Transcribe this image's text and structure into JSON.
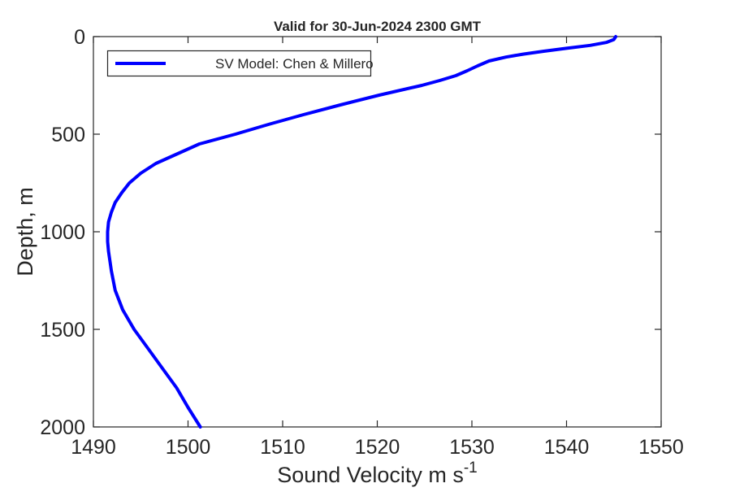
{
  "figure": {
    "background_color": "#ffffff"
  },
  "chart_data": {
    "type": "line",
    "title": "Valid for 30-Jun-2024 2300 GMT",
    "xlabel": "Sound Velocity m s",
    "xlabel_exponent": "-1",
    "ylabel": "Depth, m",
    "xlim": [
      1490,
      1550
    ],
    "ylim": [
      0,
      2000
    ],
    "y_axis_reversed": true,
    "grid": false,
    "box": true,
    "tick_direction": "in",
    "axis_color": "#262626",
    "xticks": [
      1490,
      1500,
      1510,
      1520,
      1530,
      1540,
      1550
    ],
    "yticks": [
      0,
      500,
      1000,
      1500,
      2000
    ],
    "legend": {
      "position": "top-left-inside",
      "border_color": "#262626",
      "entries": [
        {
          "label": "SV Model: Chen & Millero",
          "color": "#0000ff"
        }
      ]
    },
    "series": [
      {
        "name": "SV Model: Chen & Millero",
        "color": "#0000ff",
        "line_width": 4,
        "depth_m": [
          0,
          15,
          30,
          45,
          60,
          75,
          90,
          105,
          125,
          150,
          175,
          200,
          225,
          250,
          300,
          350,
          400,
          450,
          500,
          550,
          600,
          650,
          700,
          750,
          800,
          850,
          900,
          950,
          1000,
          1050,
          1100,
          1200,
          1300,
          1400,
          1500,
          1600,
          1700,
          1800,
          1900,
          2000
        ],
        "velocity_m_s": [
          1545.2,
          1545.0,
          1544.2,
          1542.5,
          1540.0,
          1537.6,
          1535.4,
          1533.6,
          1531.8,
          1530.6,
          1529.5,
          1528.3,
          1526.6,
          1524.7,
          1520.2,
          1516.1,
          1512.2,
          1508.5,
          1505.0,
          1501.2,
          1498.9,
          1496.6,
          1495.0,
          1493.8,
          1493.0,
          1492.3,
          1491.9,
          1491.6,
          1491.5,
          1491.5,
          1491.6,
          1491.9,
          1492.3,
          1493.1,
          1494.3,
          1495.8,
          1497.3,
          1498.8,
          1500.0,
          1501.3
        ]
      }
    ]
  }
}
